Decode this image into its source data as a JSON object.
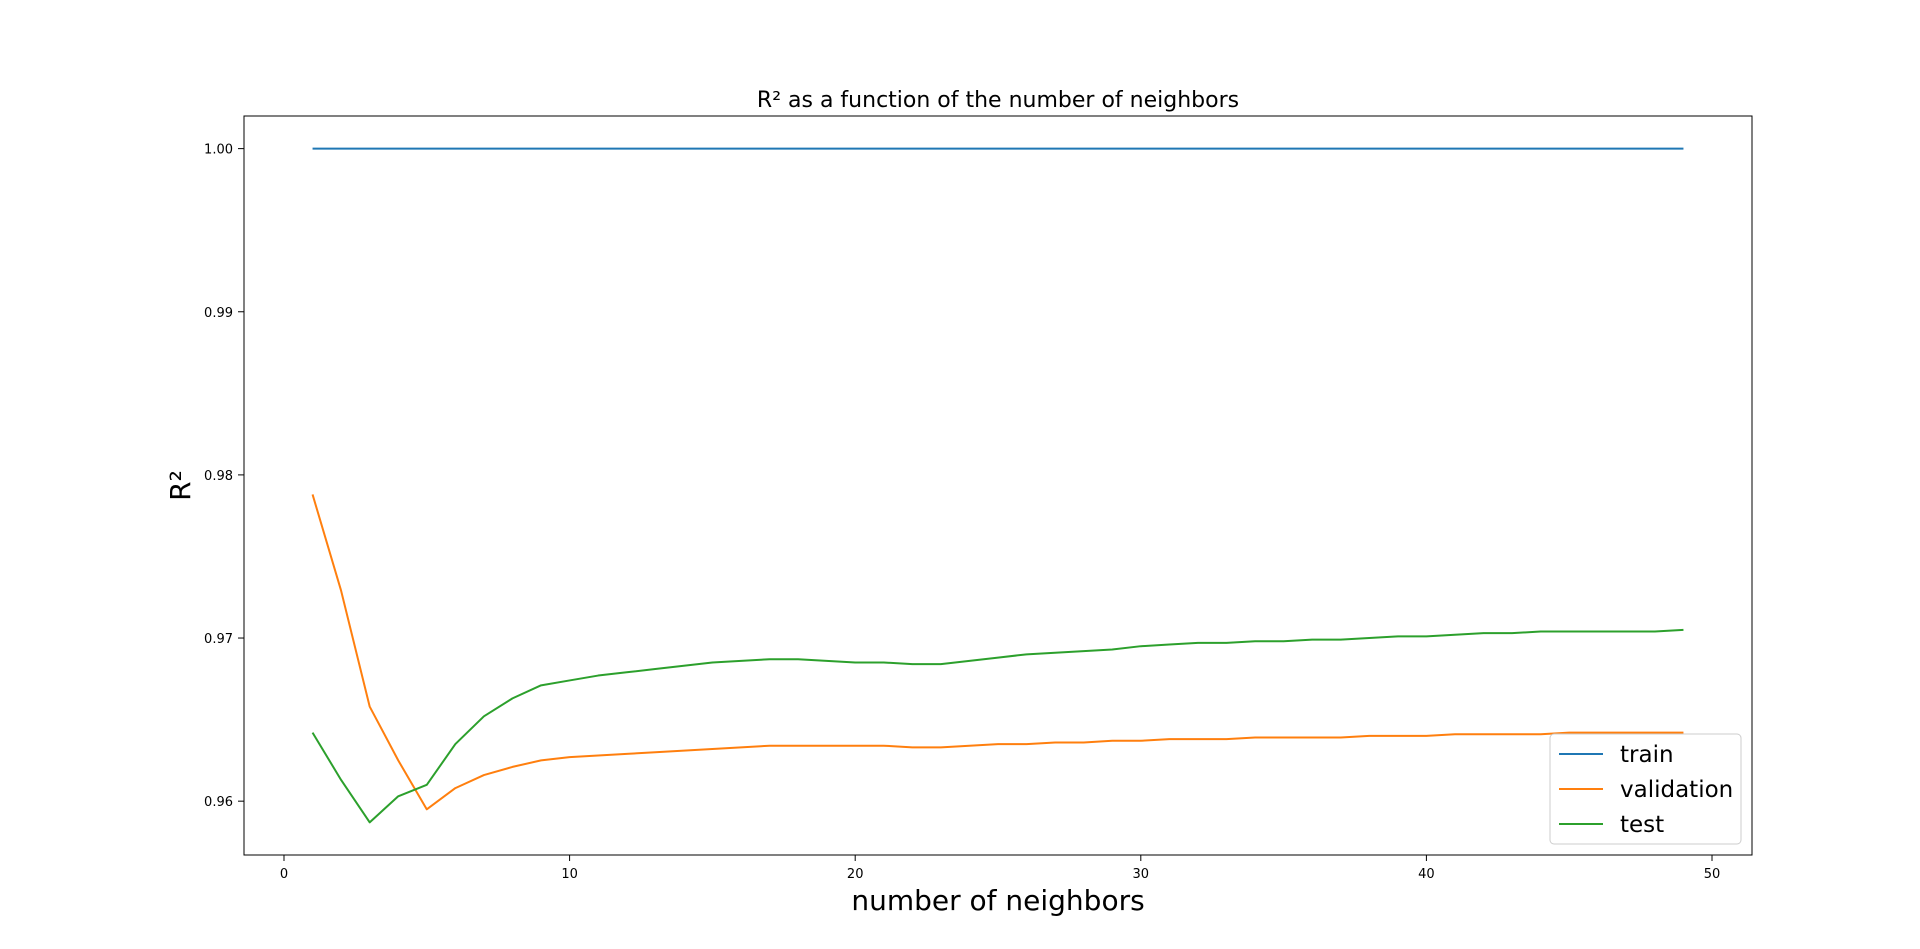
{
  "chart_data": {
    "type": "line",
    "title": "R² as a function of the number of neighbors",
    "xlabel": "number of neighbors",
    "ylabel": "R²",
    "xlim": [
      -1.4,
      51.4
    ],
    "ylim": [
      0.9567,
      1.002
    ],
    "xticks": [
      0,
      10,
      20,
      30,
      40,
      50
    ],
    "yticks": [
      0.96,
      0.97,
      0.98,
      0.99,
      1.0
    ],
    "xtick_labels": [
      "0",
      "10",
      "20",
      "30",
      "40",
      "50"
    ],
    "ytick_labels": [
      "0.96",
      "0.97",
      "0.98",
      "0.99",
      "1.00"
    ],
    "grid": false,
    "legend_position": "lower-right",
    "x": [
      1,
      2,
      3,
      4,
      5,
      6,
      7,
      8,
      9,
      10,
      11,
      12,
      13,
      14,
      15,
      16,
      17,
      18,
      19,
      20,
      21,
      22,
      23,
      24,
      25,
      26,
      27,
      28,
      29,
      30,
      31,
      32,
      33,
      34,
      35,
      36,
      37,
      38,
      39,
      40,
      41,
      42,
      43,
      44,
      45,
      46,
      47,
      48,
      49
    ],
    "series": [
      {
        "name": "train",
        "color": "#1f77b4",
        "values": [
          1.0,
          1.0,
          1.0,
          1.0,
          1.0,
          1.0,
          1.0,
          1.0,
          1.0,
          1.0,
          1.0,
          1.0,
          1.0,
          1.0,
          1.0,
          1.0,
          1.0,
          1.0,
          1.0,
          1.0,
          1.0,
          1.0,
          1.0,
          1.0,
          1.0,
          1.0,
          1.0,
          1.0,
          1.0,
          1.0,
          1.0,
          1.0,
          1.0,
          1.0,
          1.0,
          1.0,
          1.0,
          1.0,
          1.0,
          1.0,
          1.0,
          1.0,
          1.0,
          1.0,
          1.0,
          1.0,
          1.0,
          1.0,
          1.0
        ]
      },
      {
        "name": "validation",
        "color": "#ff7f0e",
        "values": [
          0.9788,
          0.9729,
          0.9658,
          0.9625,
          0.9595,
          0.9608,
          0.9616,
          0.9621,
          0.9625,
          0.9627,
          0.9628,
          0.9629,
          0.963,
          0.9631,
          0.9632,
          0.9633,
          0.9634,
          0.9634,
          0.9634,
          0.9634,
          0.9634,
          0.9633,
          0.9633,
          0.9634,
          0.9635,
          0.9635,
          0.9636,
          0.9636,
          0.9637,
          0.9637,
          0.9638,
          0.9638,
          0.9638,
          0.9639,
          0.9639,
          0.9639,
          0.9639,
          0.964,
          0.964,
          0.964,
          0.9641,
          0.9641,
          0.9641,
          0.9641,
          0.9642,
          0.9642,
          0.9642,
          0.9642,
          0.9642
        ]
      },
      {
        "name": "test",
        "color": "#2ca02c",
        "values": [
          0.9642,
          0.9613,
          0.9587,
          0.9603,
          0.961,
          0.9635,
          0.9652,
          0.9663,
          0.9671,
          0.9674,
          0.9677,
          0.9679,
          0.9681,
          0.9683,
          0.9685,
          0.9686,
          0.9687,
          0.9687,
          0.9686,
          0.9685,
          0.9685,
          0.9684,
          0.9684,
          0.9686,
          0.9688,
          0.969,
          0.9691,
          0.9692,
          0.9693,
          0.9695,
          0.9696,
          0.9697,
          0.9697,
          0.9698,
          0.9698,
          0.9699,
          0.9699,
          0.97,
          0.9701,
          0.9701,
          0.9702,
          0.9703,
          0.9703,
          0.9704,
          0.9704,
          0.9704,
          0.9704,
          0.9704,
          0.9705
        ]
      }
    ]
  }
}
